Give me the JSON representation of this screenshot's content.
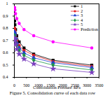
{
  "chart_data": {
    "type": "line",
    "title": "Figure 5. Consolidation curve of each data row",
    "x_label": "Consolidation Pressure /kPa",
    "x": [
      12.5,
      25,
      50,
      100,
      200,
      400,
      800,
      1600,
      3200
    ],
    "xlim": [
      0,
      3500
    ],
    "xticks": [
      0,
      500,
      1000,
      1500,
      2000,
      2500,
      3000,
      3500
    ],
    "ylim": [
      0.4,
      1.0
    ],
    "yticks": [
      0.4,
      0.5,
      0.6,
      0.7,
      0.8,
      0.9,
      1.0
    ],
    "grid": false,
    "legend": "upper right",
    "series": [
      {
        "name": "1",
        "color": "#000000",
        "marker": "square",
        "values": [
          0.86,
          0.83,
          0.79,
          0.74,
          0.69,
          0.64,
          0.59,
          0.54,
          0.5
        ]
      },
      {
        "name": "2",
        "color": "#e41a1c",
        "marker": "circle",
        "values": [
          0.8,
          0.78,
          0.74,
          0.7,
          0.66,
          0.62,
          0.58,
          0.53,
          0.49
        ]
      },
      {
        "name": "3",
        "color": "#1f3fd0",
        "marker": "triangle",
        "values": [
          0.77,
          0.75,
          0.72,
          0.68,
          0.64,
          0.6,
          0.56,
          0.52,
          0.48
        ]
      },
      {
        "name": "4",
        "color": "#1a9641",
        "marker": "diamond",
        "values": [
          0.74,
          0.72,
          0.69,
          0.66,
          0.62,
          0.58,
          0.54,
          0.5,
          0.46
        ]
      },
      {
        "name": "5",
        "color": "#7b3fbf",
        "marker": "star",
        "values": [
          0.72,
          0.7,
          0.67,
          0.63,
          0.59,
          0.55,
          0.51,
          0.47,
          0.44
        ]
      },
      {
        "name": "Prediction",
        "color": "#ff00ff",
        "marker": "circle",
        "values": [
          0.97,
          0.95,
          0.92,
          0.88,
          0.84,
          0.79,
          0.74,
          0.69,
          0.64
        ]
      }
    ]
  }
}
